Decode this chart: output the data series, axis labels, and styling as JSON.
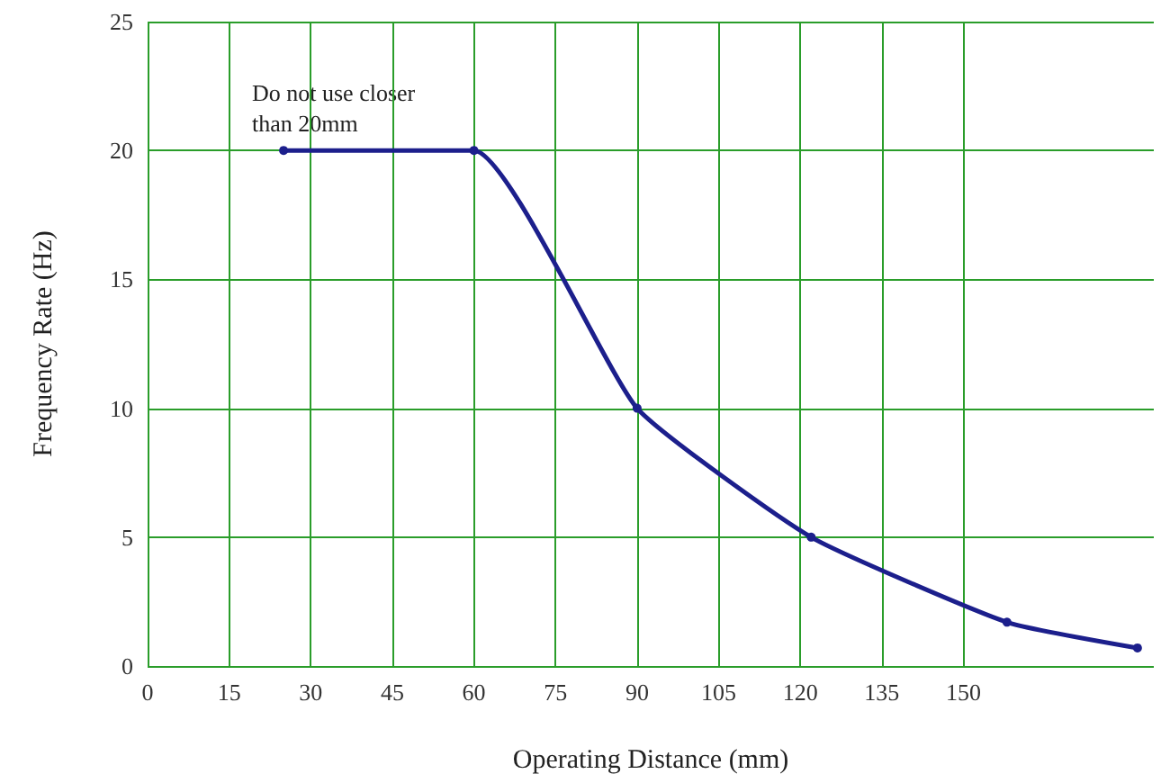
{
  "chart_data": {
    "type": "line",
    "xlabel": "Operating Distance (mm)",
    "ylabel": "Frequency Rate (Hz)",
    "annotations": [
      "Do not use closer\nthan 20mm"
    ],
    "x": [
      25,
      60,
      90,
      122,
      158,
      182
    ],
    "series": [
      {
        "color": "#1c1f8c",
        "values": [
          20,
          20,
          10,
          5,
          1.7,
          0.7
        ]
      }
    ],
    "xlim": [
      0,
      185
    ],
    "xticks": [
      0,
      15,
      30,
      45,
      60,
      75,
      90,
      105,
      120,
      135,
      150
    ],
    "ylim": [
      0,
      25
    ],
    "yticks": [
      0,
      5,
      10,
      15,
      20,
      25
    ],
    "grid": true,
    "marker": "circle",
    "line_style": "solid"
  }
}
